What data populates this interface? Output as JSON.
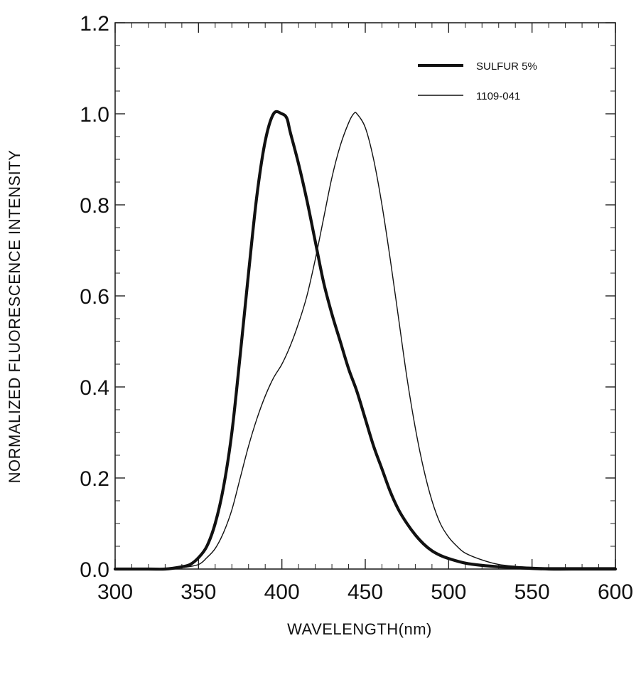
{
  "chart_data": {
    "type": "line",
    "title": "",
    "xlabel": "WAVELENGTH(nm)",
    "ylabel": "NORMALIZED  FLUORESCENCE  INTENSITY",
    "xlim": [
      300,
      600
    ],
    "ylim": [
      0.0,
      1.2
    ],
    "x_ticks": [
      "300",
      "350",
      "400",
      "450",
      "500",
      "550",
      "600"
    ],
    "y_ticks": [
      "0.0",
      "0.2",
      "0.4",
      "0.6",
      "0.8",
      "1.0",
      "1.2"
    ],
    "grid": false,
    "legend_position": "top-right",
    "series": [
      {
        "name": "SULFUR 5%",
        "line_style": "thick",
        "color": "#111111",
        "x": [
          300,
          320,
          330,
          340,
          345,
          350,
          355,
          360,
          365,
          370,
          375,
          380,
          385,
          390,
          395,
          400,
          403,
          405,
          410,
          415,
          420,
          425,
          430,
          435,
          440,
          445,
          450,
          455,
          460,
          465,
          470,
          475,
          480,
          485,
          490,
          495,
          500,
          510,
          520,
          530,
          540,
          560,
          580,
          600
        ],
        "y": [
          0.0,
          0.0,
          0.0,
          0.005,
          0.01,
          0.025,
          0.05,
          0.1,
          0.18,
          0.3,
          0.47,
          0.65,
          0.82,
          0.94,
          1.0,
          1.0,
          0.99,
          0.96,
          0.89,
          0.81,
          0.72,
          0.63,
          0.56,
          0.5,
          0.44,
          0.39,
          0.33,
          0.27,
          0.22,
          0.17,
          0.13,
          0.1,
          0.075,
          0.055,
          0.04,
          0.03,
          0.023,
          0.013,
          0.008,
          0.005,
          0.003,
          0.0,
          0.0,
          0.0
        ]
      },
      {
        "name": "1109-041",
        "line_style": "thin",
        "color": "#111111",
        "x": [
          300,
          330,
          340,
          350,
          355,
          360,
          365,
          370,
          375,
          380,
          385,
          390,
          395,
          400,
          405,
          410,
          415,
          420,
          425,
          430,
          435,
          440,
          443,
          445,
          450,
          455,
          460,
          465,
          470,
          475,
          480,
          485,
          490,
          495,
          500,
          505,
          510,
          520,
          530,
          540,
          550,
          560,
          580,
          600
        ],
        "y": [
          0.0,
          0.0,
          0.003,
          0.01,
          0.025,
          0.045,
          0.08,
          0.13,
          0.2,
          0.27,
          0.33,
          0.38,
          0.42,
          0.45,
          0.49,
          0.54,
          0.6,
          0.68,
          0.77,
          0.86,
          0.93,
          0.98,
          1.0,
          1.0,
          0.97,
          0.9,
          0.8,
          0.68,
          0.55,
          0.42,
          0.31,
          0.22,
          0.15,
          0.1,
          0.07,
          0.05,
          0.035,
          0.02,
          0.01,
          0.006,
          0.004,
          0.003,
          0.003,
          0.003
        ]
      }
    ]
  }
}
